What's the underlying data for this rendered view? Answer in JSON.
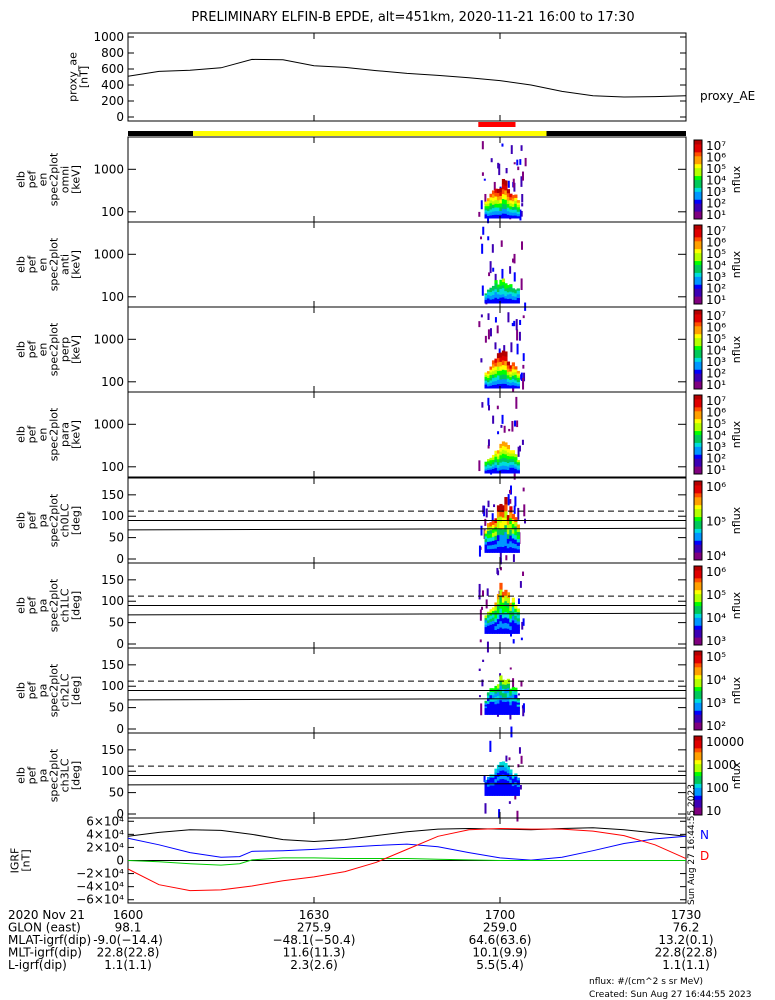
{
  "title": "PRELIMINARY ELFIN-B EPDE, alt=451km, 2020-11-21 16:00 to 17:30",
  "proxy_ae": {
    "ylabel_lines": [
      "proxy_ae",
      "[nT]"
    ],
    "yticks": [
      "1000",
      "800",
      "600",
      "400",
      "200",
      "0"
    ],
    "ytick_values": [
      1000,
      800,
      600,
      400,
      200,
      0
    ],
    "ylim": [
      -50,
      1050
    ],
    "legend": "proxy_AE",
    "curve": [
      [
        0,
        510
      ],
      [
        5,
        570
      ],
      [
        10,
        585
      ],
      [
        15,
        615
      ],
      [
        20,
        720
      ],
      [
        25,
        715
      ],
      [
        30,
        640
      ],
      [
        35,
        620
      ],
      [
        40,
        580
      ],
      [
        45,
        545
      ],
      [
        50,
        520
      ],
      [
        55,
        490
      ],
      [
        60,
        455
      ],
      [
        65,
        400
      ],
      [
        70,
        320
      ],
      [
        75,
        265
      ],
      [
        80,
        250
      ],
      [
        85,
        255
      ],
      [
        90,
        265
      ]
    ]
  },
  "status_bar": {
    "segments": [
      {
        "from": 0,
        "to": 10.5,
        "color": "#000000"
      },
      {
        "from": 10.5,
        "to": 67.5,
        "color": "#ffff00"
      },
      {
        "from": 67.5,
        "to": 90,
        "color": "#000000"
      }
    ],
    "red_marker": {
      "from": 56.5,
      "to": 62.5,
      "color": "#ff0000"
    }
  },
  "energy_panels": [
    {
      "label_lines": [
        "elb",
        "pef",
        "en",
        "spec2plot",
        "omni",
        "[keV]"
      ],
      "yticks": [
        "1000",
        "100"
      ],
      "cbar_ticks": [
        "10⁷",
        "10⁶",
        "10⁵",
        "10⁴",
        "10³",
        "10²",
        "10¹"
      ],
      "cbar_label": "nflux",
      "intensity": 1.0
    },
    {
      "label_lines": [
        "elb",
        "pef",
        "en",
        "spec2plot",
        "anti",
        "[keV]"
      ],
      "yticks": [
        "1000",
        "100"
      ],
      "cbar_ticks": [
        "10⁷",
        "10⁶",
        "10⁵",
        "10⁴",
        "10³",
        "10²",
        "10¹"
      ],
      "cbar_label": "nflux",
      "intensity": 0.45
    },
    {
      "label_lines": [
        "elb",
        "pef",
        "en",
        "spec2plot",
        "perp",
        "[keV]"
      ],
      "yticks": [
        "1000",
        "100"
      ],
      "cbar_ticks": [
        "10⁷",
        "10⁶",
        "10⁵",
        "10⁴",
        "10³",
        "10²",
        "10¹"
      ],
      "cbar_label": "nflux",
      "intensity": 1.0
    },
    {
      "label_lines": [
        "elb",
        "pef",
        "en",
        "spec2plot",
        "para",
        "[keV]"
      ],
      "yticks": [
        "1000",
        "100"
      ],
      "cbar_ticks": [
        "10⁷",
        "10⁶",
        "10⁵",
        "10⁴",
        "10³",
        "10²",
        "10¹"
      ],
      "cbar_label": "nflux",
      "intensity": 0.7
    }
  ],
  "pitch_panels": [
    {
      "label_lines": [
        "elb",
        "pef",
        "pa",
        "spec2plot",
        "ch0LC",
        "[deg]"
      ],
      "yticks": [
        "150",
        "100",
        "50",
        "0"
      ],
      "cbar_ticks": [
        "10⁶",
        "10⁵",
        "10⁴"
      ],
      "cbar_label": "nflux",
      "intensity": 1.0
    },
    {
      "label_lines": [
        "elb",
        "pef",
        "pa",
        "spec2plot",
        "ch1LC",
        "[deg]"
      ],
      "yticks": [
        "150",
        "100",
        "50",
        "0"
      ],
      "cbar_ticks": [
        "10⁶",
        "10⁵",
        "10⁴",
        "10³"
      ],
      "cbar_label": "nflux",
      "intensity": 0.75
    },
    {
      "label_lines": [
        "elb",
        "pef",
        "pa",
        "spec2plot",
        "ch2LC",
        "[deg]"
      ],
      "yticks": [
        "150",
        "100",
        "50",
        "0"
      ],
      "cbar_ticks": [
        "10⁵",
        "10⁴",
        "10³",
        "10²"
      ],
      "cbar_label": "nflux",
      "intensity": 0.5
    },
    {
      "label_lines": [
        "elb",
        "pef",
        "pa",
        "spec2plot",
        "ch3LC",
        "[deg]"
      ],
      "yticks": [
        "150",
        "100",
        "50",
        "0"
      ],
      "cbar_ticks": [
        "10000",
        "1000",
        "100",
        "10"
      ],
      "cbar_label": "nflux",
      "intensity": 0.25
    }
  ],
  "igrf": {
    "ylabel_lines": [
      "IGRF",
      "[nT]"
    ],
    "yticks": [
      "6×10⁴",
      "4×10⁴",
      "2×10⁴",
      "0",
      "−2×10⁴",
      "−4×10⁴",
      "−6×10⁴"
    ],
    "ytick_values": [
      60000,
      40000,
      20000,
      0,
      -20000,
      -40000,
      -60000
    ],
    "ylim": [
      -65000,
      65000
    ],
    "legend": [
      {
        "text": "N",
        "color": "#0000ff"
      },
      {
        "text": "D",
        "color": "#ff0000"
      }
    ],
    "series": [
      {
        "color": "#000000",
        "points": [
          [
            0,
            37000
          ],
          [
            5,
            43000
          ],
          [
            10,
            47000
          ],
          [
            15,
            46000
          ],
          [
            20,
            40000
          ],
          [
            25,
            32000
          ],
          [
            30,
            29000
          ],
          [
            35,
            32000
          ],
          [
            40,
            38000
          ],
          [
            45,
            44000
          ],
          [
            50,
            48000
          ],
          [
            55,
            49000
          ],
          [
            60,
            48000
          ],
          [
            65,
            47000
          ],
          [
            70,
            49000
          ],
          [
            75,
            50000
          ],
          [
            80,
            47000
          ],
          [
            85,
            42000
          ],
          [
            90,
            37000
          ]
        ]
      },
      {
        "color": "#0000ff",
        "points": [
          [
            0,
            34000
          ],
          [
            5,
            24000
          ],
          [
            10,
            12000
          ],
          [
            15,
            5000
          ],
          [
            18,
            6000
          ],
          [
            20,
            14000
          ],
          [
            25,
            15000
          ],
          [
            30,
            17000
          ],
          [
            35,
            20000
          ],
          [
            40,
            23000
          ],
          [
            45,
            25000
          ],
          [
            50,
            21000
          ],
          [
            55,
            12000
          ],
          [
            60,
            4000
          ],
          [
            65,
            500
          ],
          [
            70,
            5000
          ],
          [
            75,
            15000
          ],
          [
            80,
            26000
          ],
          [
            85,
            33000
          ],
          [
            90,
            37000
          ]
        ]
      },
      {
        "color": "#00cc00",
        "points": [
          [
            0,
            0
          ],
          [
            5,
            -2000
          ],
          [
            10,
            -5000
          ],
          [
            15,
            -7000
          ],
          [
            18,
            -5000
          ],
          [
            20,
            1000
          ],
          [
            25,
            4000
          ],
          [
            30,
            4000
          ],
          [
            35,
            3000
          ],
          [
            40,
            3000
          ],
          [
            45,
            3000
          ],
          [
            50,
            2000
          ],
          [
            55,
            1000
          ],
          [
            60,
            0
          ],
          [
            65,
            0
          ],
          [
            70,
            0
          ],
          [
            75,
            0
          ],
          [
            80,
            0
          ],
          [
            85,
            0
          ],
          [
            90,
            0
          ]
        ]
      },
      {
        "color": "#ff0000",
        "points": [
          [
            0,
            -13000
          ],
          [
            5,
            -37000
          ],
          [
            10,
            -46000
          ],
          [
            15,
            -45000
          ],
          [
            20,
            -39000
          ],
          [
            25,
            -31000
          ],
          [
            30,
            -25000
          ],
          [
            35,
            -17000
          ],
          [
            40,
            -3000
          ],
          [
            45,
            17000
          ],
          [
            50,
            37000
          ],
          [
            55,
            47000
          ],
          [
            60,
            49000
          ],
          [
            65,
            48000
          ],
          [
            70,
            48000
          ],
          [
            75,
            45000
          ],
          [
            80,
            38000
          ],
          [
            85,
            24000
          ],
          [
            90,
            3000
          ]
        ]
      }
    ],
    "side_note": "Sun Aug 27 16:44:55 2023"
  },
  "xaxis": {
    "range": [
      0,
      90
    ],
    "ticks": [
      {
        "t": 0,
        "label": "1600"
      },
      {
        "t": 30,
        "label": "1630"
      },
      {
        "t": 60,
        "label": "1700"
      },
      {
        "t": 90,
        "label": "1730"
      }
    ]
  },
  "footer": {
    "rows": [
      {
        "label": "2020 Nov 21",
        "values": [
          "1600",
          "1630",
          "1700",
          "1730"
        ]
      },
      {
        "label": "GLON (east)",
        "values": [
          "98.1",
          "275.9",
          "259.0",
          "76.2"
        ]
      },
      {
        "label": "MLAT-igrf(dip)",
        "values": [
          "-9.0(−14.4)",
          "−48.1(−50.4)",
          "64.6(63.6)",
          "13.2(0.1)"
        ]
      },
      {
        "label": "MLT-igrf(dip)",
        "values": [
          "22.8(22.8)",
          "11.6(11.3)",
          "10.1(9.9)",
          "22.8(22.8)"
        ]
      },
      {
        "label": "L-igrf(dip)",
        "values": [
          "1.1(1.1)",
          "2.3(2.6)",
          "5.5(5.4)",
          "1.1(1.1)"
        ]
      }
    ],
    "units_note": "nflux: #/(cm^2 s sr MeV)",
    "created": "Created: Sun Aug 27 16:44:55 2023"
  },
  "colors": {
    "palette": [
      "#7f007f",
      "#3c00b4",
      "#0000ff",
      "#0096ff",
      "#00dcdc",
      "#00c85a",
      "#00ff00",
      "#b4ff00",
      "#ffff00",
      "#ffa000",
      "#ff5000",
      "#e00000",
      "#b40000"
    ]
  }
}
